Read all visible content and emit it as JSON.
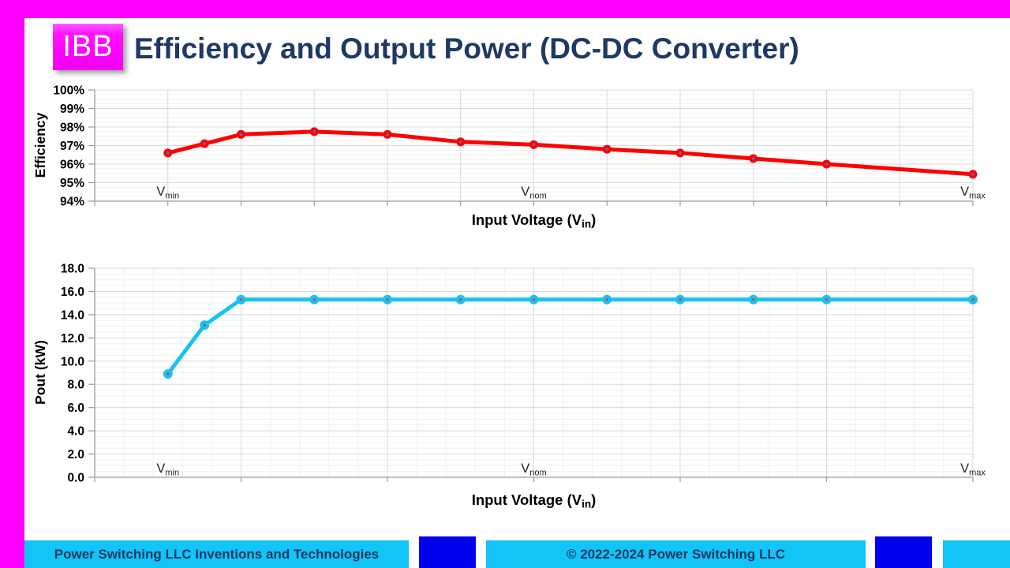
{
  "slide": {
    "logo": "IBB",
    "title": "Efficiency and Output Power (DC-DC Converter)",
    "colors": {
      "magenta_border": "#FF00FF",
      "title_navy": "#1F3864",
      "efficiency_line_red": "#FE0000",
      "power_line_cyan": "#17C2F5",
      "footer_cyan": "#12C4F8",
      "footer_blue_block": "#0202EF",
      "footer_text_navy": "#17375E",
      "grid_major": "#DADADA",
      "grid_minor": "#F1F1F1",
      "axis_line": "#9B9B9B"
    }
  },
  "charts": [
    {
      "chart_data": {
        "type": "line",
        "title": "",
        "xlabel": {
          "text": "Input Voltage (Vin)",
          "pre": "Input Voltage (V",
          "sub": "in",
          "post": ")"
        },
        "ylabel": "Efficiency",
        "ylim": [
          94,
          100
        ],
        "ytick_step": 1,
        "yticks": [
          "94%",
          "95%",
          "96%",
          "97%",
          "98%",
          "99%",
          "100%"
        ],
        "xlim": [
          0,
          12
        ],
        "grid": "on",
        "legend_position": "none",
        "x_annotations": [
          {
            "label": "Vmin",
            "base": "V",
            "sub": "min",
            "x": 1
          },
          {
            "label": "Vnom",
            "base": "V",
            "sub": "nom",
            "x": 6
          },
          {
            "label": "Vmax",
            "base": "V",
            "sub": "max",
            "x": 12
          }
        ],
        "series": [
          {
            "name": "Efficiency",
            "color": "#FE0000",
            "marker_dot_color": "#4472C4",
            "x": [
              1,
              1.5,
              2,
              3,
              4,
              5,
              6,
              7,
              8,
              9,
              10,
              12
            ],
            "values": [
              96.6,
              97.1,
              97.6,
              97.75,
              97.6,
              97.2,
              97.05,
              96.8,
              96.6,
              96.3,
              96.0,
              95.45
            ]
          }
        ]
      }
    },
    {
      "chart_data": {
        "type": "line",
        "title": "",
        "xlabel": {
          "text": "Input Voltage (Vin)",
          "pre": "Input Voltage (V",
          "sub": "in",
          "post": ")"
        },
        "ylabel": "Pout (kW)",
        "ylim": [
          0,
          18
        ],
        "ytick_step": 2,
        "yticks": [
          "0.0",
          "2.0",
          "4.0",
          "6.0",
          "8.0",
          "10.0",
          "12.0",
          "14.0",
          "16.0",
          "18.0"
        ],
        "xlim": [
          0,
          12
        ],
        "grid": "on",
        "legend_position": "none",
        "x_annotations": [
          {
            "label": "Vmin",
            "base": "V",
            "sub": "min",
            "x": 1
          },
          {
            "label": "Vnom",
            "base": "V",
            "sub": "nom",
            "x": 6
          },
          {
            "label": "Vmax",
            "base": "V",
            "sub": "max",
            "x": 12
          }
        ],
        "series": [
          {
            "name": "Pout (kW)",
            "color": "#17C2F5",
            "marker_dot_color": "#C0504D",
            "x": [
              1,
              1.5,
              2,
              3,
              4,
              5,
              6,
              7,
              8,
              9,
              10,
              12
            ],
            "values": [
              8.9,
              13.1,
              15.3,
              15.3,
              15.3,
              15.3,
              15.3,
              15.3,
              15.3,
              15.3,
              15.3,
              15.3
            ]
          }
        ]
      }
    }
  ],
  "footer": {
    "left_text": "Power Switching LLC Inventions and Technologies",
    "center_text": "© 2022-2024 Power Switching LLC"
  }
}
